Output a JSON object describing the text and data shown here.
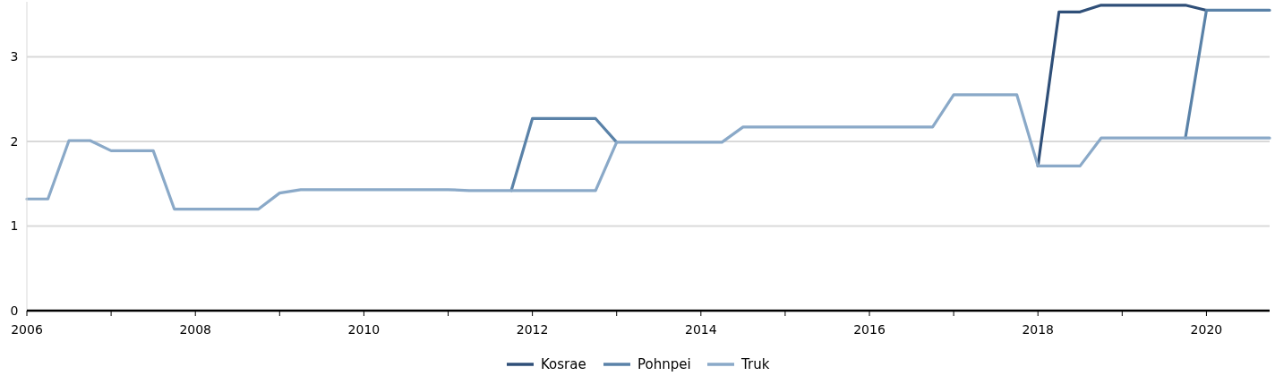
{
  "chart_data": {
    "type": "line",
    "x": [
      2006,
      2006.25,
      2006.5,
      2006.75,
      2007,
      2007.25,
      2007.5,
      2007.75,
      2008,
      2008.25,
      2008.5,
      2008.75,
      2009,
      2009.25,
      2009.5,
      2009.75,
      2010,
      2010.25,
      2010.5,
      2010.75,
      2011,
      2011.25,
      2011.5,
      2011.75,
      2012,
      2012.25,
      2012.5,
      2012.75,
      2013,
      2013.25,
      2013.5,
      2013.75,
      2014,
      2014.25,
      2014.5,
      2014.75,
      2015,
      2015.25,
      2015.5,
      2015.75,
      2016,
      2016.25,
      2016.5,
      2016.75,
      2017,
      2017.25,
      2017.5,
      2017.75,
      2018,
      2018.25,
      2018.5,
      2018.75,
      2019,
      2019.25,
      2019.5,
      2019.75,
      2020,
      2020.25,
      2020.5,
      2020.75
    ],
    "series": [
      {
        "name": "Kosrae",
        "color": "#2f4f78",
        "values": [
          null,
          null,
          null,
          null,
          null,
          null,
          null,
          null,
          null,
          null,
          null,
          null,
          null,
          null,
          null,
          null,
          null,
          null,
          null,
          null,
          null,
          null,
          null,
          null,
          null,
          null,
          null,
          null,
          null,
          null,
          null,
          null,
          null,
          null,
          null,
          null,
          null,
          null,
          null,
          null,
          null,
          null,
          null,
          null,
          null,
          null,
          null,
          null,
          1.71,
          3.53,
          3.53,
          3.61,
          3.61,
          3.61,
          3.61,
          3.61,
          3.55,
          null,
          null,
          null
        ]
      },
      {
        "name": "Pohnpei",
        "color": "#5a82a8",
        "values": [
          null,
          null,
          null,
          null,
          null,
          null,
          null,
          null,
          null,
          null,
          null,
          null,
          null,
          null,
          null,
          null,
          null,
          null,
          null,
          null,
          null,
          null,
          null,
          1.42,
          2.27,
          2.27,
          2.27,
          2.27,
          1.99,
          null,
          null,
          null,
          null,
          null,
          null,
          null,
          null,
          null,
          null,
          null,
          null,
          null,
          null,
          null,
          null,
          null,
          null,
          null,
          null,
          null,
          null,
          null,
          null,
          null,
          null,
          2.04,
          3.55,
          3.55,
          3.55,
          3.55
        ]
      },
      {
        "name": "Truk",
        "color": "#8aa9c8",
        "values": [
          1.32,
          1.32,
          2.01,
          2.01,
          1.89,
          1.89,
          1.89,
          1.2,
          1.2,
          1.2,
          1.2,
          1.2,
          1.39,
          1.43,
          1.43,
          1.43,
          1.43,
          1.43,
          1.43,
          1.43,
          1.43,
          1.42,
          1.42,
          1.42,
          1.42,
          1.42,
          1.42,
          1.42,
          1.99,
          1.99,
          1.99,
          1.99,
          1.99,
          1.99,
          2.17,
          2.17,
          2.17,
          2.17,
          2.17,
          2.17,
          2.17,
          2.17,
          2.17,
          2.17,
          2.55,
          2.55,
          2.55,
          2.55,
          1.71,
          1.71,
          1.71,
          2.04,
          2.04,
          2.04,
          2.04,
          2.04,
          2.04,
          2.04,
          2.04,
          2.04
        ]
      }
    ],
    "xlim": [
      2006,
      2020.75
    ],
    "xticks": [
      2006,
      {
        "value": 2007,
        "label": null
      },
      2008,
      {
        "value": 2009,
        "label": null
      },
      2010,
      {
        "value": 2011,
        "label": null
      },
      2012,
      {
        "value": 2013,
        "label": null
      },
      2014,
      {
        "value": 2015,
        "label": null
      },
      2016,
      {
        "value": 2017,
        "label": null
      },
      2018,
      {
        "value": 2019,
        "label": null
      },
      2020
    ],
    "ylim": [
      0,
      3.65
    ],
    "yticks": [
      0,
      1,
      2,
      3
    ],
    "grid": "y",
    "legend": "bottom",
    "marker": "none",
    "line_style": "solid"
  }
}
